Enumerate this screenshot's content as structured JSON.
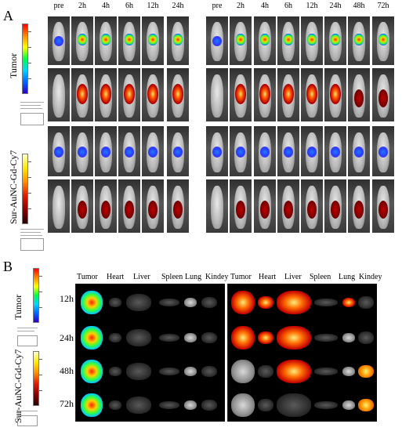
{
  "figure": {
    "panel_a": {
      "letter": "A",
      "group_labels": [
        "Tumor",
        "Sur-AuNC-Gd-Cy7"
      ],
      "left_timepoints": [
        "pre",
        "2h",
        "4h",
        "6h",
        "12h",
        "24h"
      ],
      "right_timepoints": [
        "pre",
        "2h",
        "4h",
        "6h",
        "12h",
        "24h",
        "48h",
        "72h"
      ]
    },
    "panel_b": {
      "letter": "B",
      "group_labels": [
        "Tumor",
        "Sur-AuNC-Gd-Cy7"
      ],
      "organs": [
        "Tumor",
        "Heart",
        "Liver",
        "Spleen",
        "Lung",
        "Kindey"
      ],
      "timepoints": [
        "12h",
        "24h",
        "48h",
        "72h"
      ]
    },
    "colors": {
      "scale_rainbow": [
        "#2b00c9",
        "#0066ff",
        "#00d5ff",
        "#00ff44",
        "#ffff00",
        "#ff8a00",
        "#ff0000"
      ],
      "scale_heat": [
        "#2a0000",
        "#8b0000",
        "#e01a00",
        "#ff8c00",
        "#ffe800",
        "#ffffcc"
      ]
    }
  }
}
